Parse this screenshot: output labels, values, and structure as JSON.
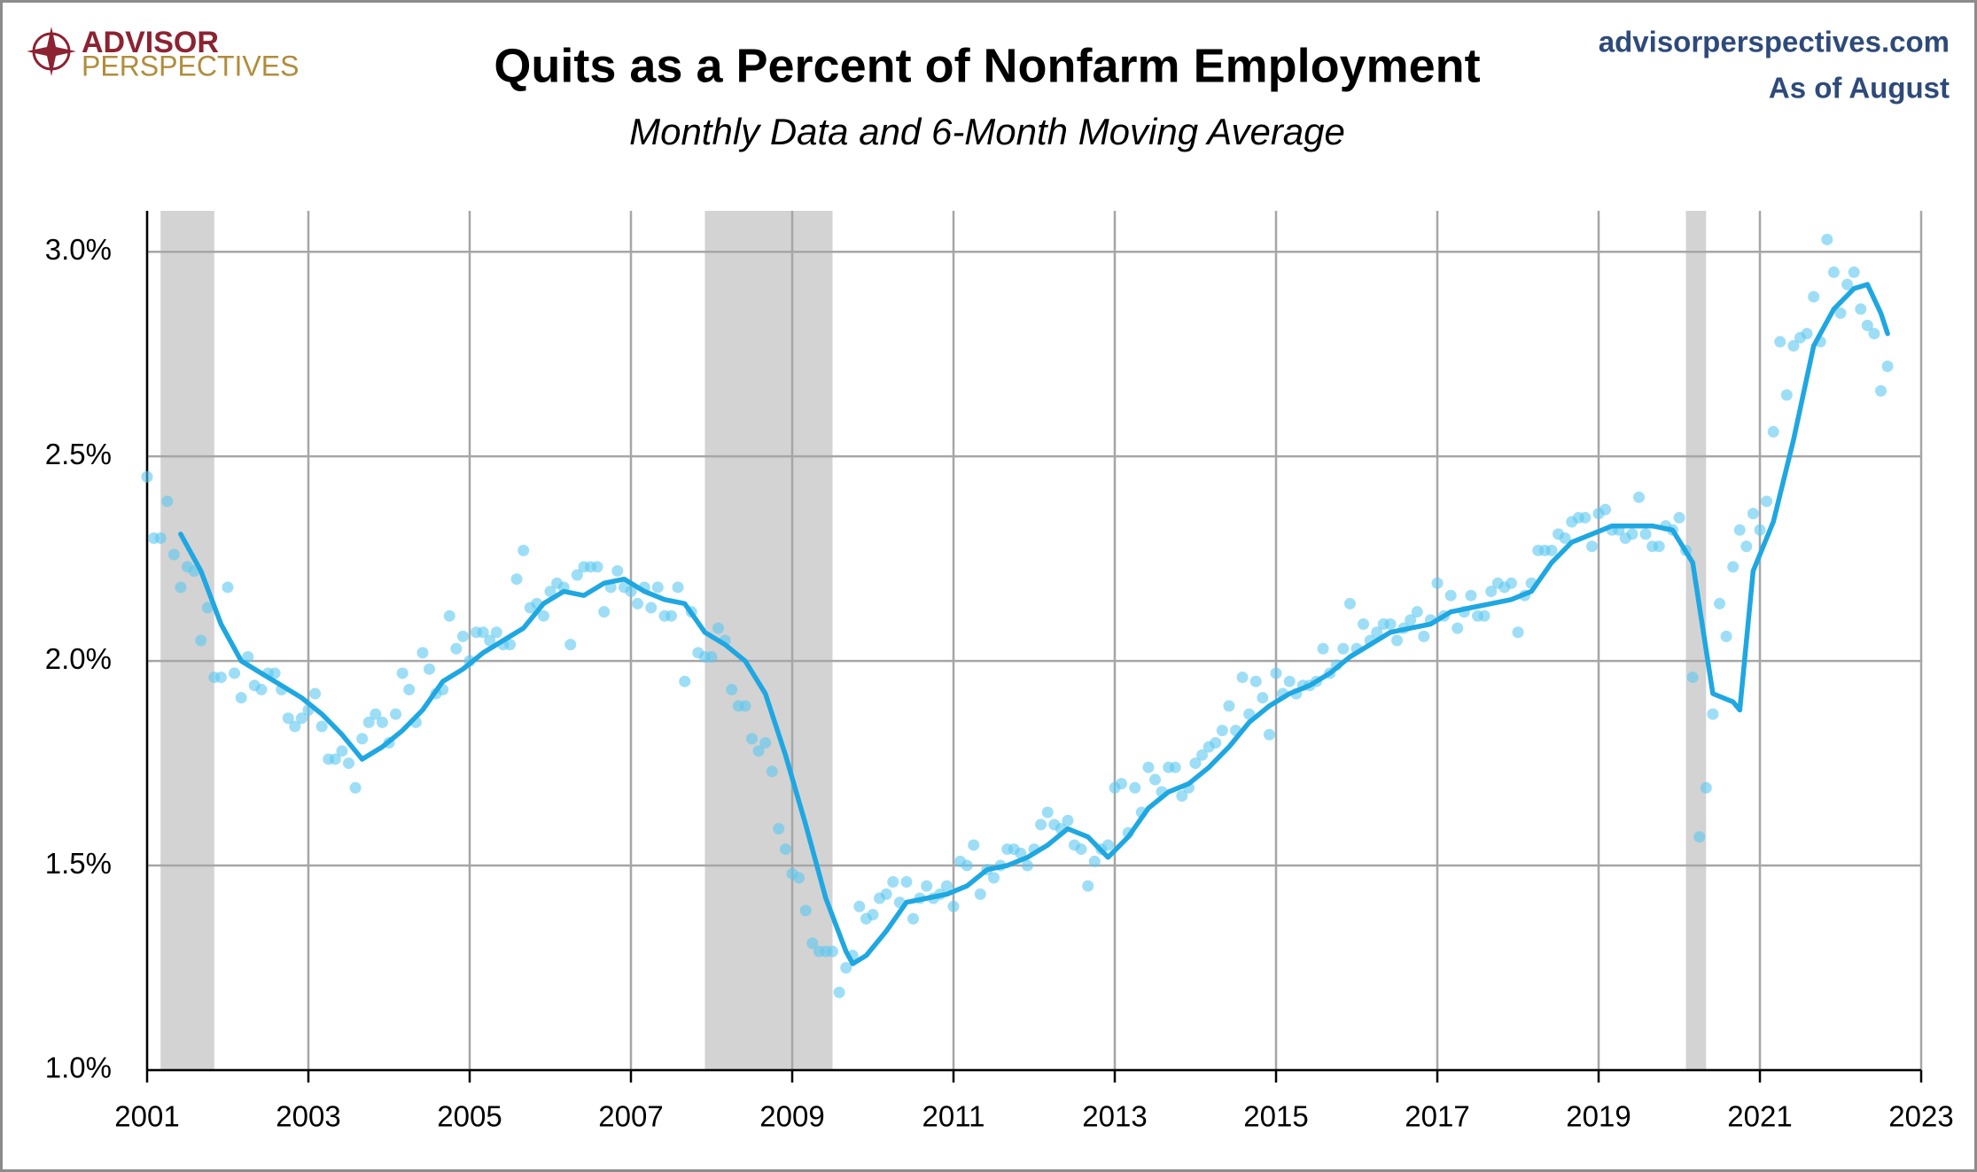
{
  "chart_data": {
    "type": "combo",
    "logo": {
      "line1": "ADVISOR",
      "line2": "PERSPECTIVES"
    },
    "source": "advisorperspectives.com",
    "as_of": "As of August",
    "title": "Quits as a Percent of Nonfarm Employment",
    "subtitle": "Monthly Data and 6-Month Moving Average",
    "xlim": [
      2001,
      2023
    ],
    "xticks": [
      2001,
      2003,
      2005,
      2007,
      2009,
      2011,
      2013,
      2015,
      2017,
      2019,
      2021,
      2023
    ],
    "ylim": [
      1.0,
      3.1
    ],
    "yticks": [
      {
        "value": 1.0,
        "label": "1.0%"
      },
      {
        "value": 1.5,
        "label": "1.5%"
      },
      {
        "value": 2.0,
        "label": "2.0%"
      },
      {
        "value": 2.5,
        "label": "2.5%"
      },
      {
        "value": 3.0,
        "label": "3.0%"
      }
    ],
    "grid": true,
    "shaded_periods": [
      [
        2001.167,
        2001.833
      ],
      [
        2007.917,
        2009.5
      ],
      [
        2020.083,
        2020.333
      ]
    ],
    "shade_color": "#D3D3D3",
    "series": [
      {
        "type": "scatter",
        "color": "#5BC8F0",
        "x": [
          2001,
          2001.083,
          2001.167,
          2001.25,
          2001.333,
          2001.417,
          2001.5,
          2001.583,
          2001.667,
          2001.75,
          2001.833,
          2001.917,
          2002,
          2002.083,
          2002.167,
          2002.25,
          2002.333,
          2002.417,
          2002.5,
          2002.583,
          2002.667,
          2002.75,
          2002.833,
          2002.917,
          2003,
          2003.083,
          2003.167,
          2003.25,
          2003.333,
          2003.417,
          2003.5,
          2003.583,
          2003.667,
          2003.75,
          2003.833,
          2003.917,
          2004,
          2004.083,
          2004.167,
          2004.25,
          2004.333,
          2004.417,
          2004.5,
          2004.583,
          2004.667,
          2004.75,
          2004.833,
          2004.917,
          2005,
          2005.083,
          2005.167,
          2005.25,
          2005.333,
          2005.417,
          2005.5,
          2005.583,
          2005.667,
          2005.75,
          2005.833,
          2005.917,
          2006,
          2006.083,
          2006.167,
          2006.25,
          2006.333,
          2006.417,
          2006.5,
          2006.583,
          2006.667,
          2006.75,
          2006.833,
          2006.917,
          2007,
          2007.083,
          2007.167,
          2007.25,
          2007.333,
          2007.417,
          2007.5,
          2007.583,
          2007.667,
          2007.75,
          2007.833,
          2007.917,
          2008,
          2008.083,
          2008.167,
          2008.25,
          2008.333,
          2008.417,
          2008.5,
          2008.583,
          2008.667,
          2008.75,
          2008.833,
          2008.917,
          2009,
          2009.083,
          2009.167,
          2009.25,
          2009.333,
          2009.417,
          2009.5,
          2009.583,
          2009.667,
          2009.75,
          2009.833,
          2009.917,
          2010,
          2010.083,
          2010.167,
          2010.25,
          2010.333,
          2010.417,
          2010.5,
          2010.583,
          2010.667,
          2010.75,
          2010.833,
          2010.917,
          2011,
          2011.083,
          2011.167,
          2011.25,
          2011.333,
          2011.417,
          2011.5,
          2011.583,
          2011.667,
          2011.75,
          2011.833,
          2011.917,
          2012,
          2012.083,
          2012.167,
          2012.25,
          2012.333,
          2012.417,
          2012.5,
          2012.583,
          2012.667,
          2012.75,
          2012.833,
          2012.917,
          2013,
          2013.083,
          2013.167,
          2013.25,
          2013.333,
          2013.417,
          2013.5,
          2013.583,
          2013.667,
          2013.75,
          2013.833,
          2013.917,
          2014,
          2014.083,
          2014.167,
          2014.25,
          2014.333,
          2014.417,
          2014.5,
          2014.583,
          2014.667,
          2014.75,
          2014.833,
          2014.917,
          2015,
          2015.083,
          2015.167,
          2015.25,
          2015.333,
          2015.417,
          2015.5,
          2015.583,
          2015.667,
          2015.75,
          2015.833,
          2015.917,
          2016,
          2016.083,
          2016.167,
          2016.25,
          2016.333,
          2016.417,
          2016.5,
          2016.583,
          2016.667,
          2016.75,
          2016.833,
          2016.917,
          2017,
          2017.083,
          2017.167,
          2017.25,
          2017.333,
          2017.417,
          2017.5,
          2017.583,
          2017.667,
          2017.75,
          2017.833,
          2017.917,
          2018,
          2018.083,
          2018.167,
          2018.25,
          2018.333,
          2018.417,
          2018.5,
          2018.583,
          2018.667,
          2018.75,
          2018.833,
          2018.917,
          2019,
          2019.083,
          2019.167,
          2019.25,
          2019.333,
          2019.417,
          2019.5,
          2019.583,
          2019.667,
          2019.75,
          2019.833,
          2019.917,
          2020,
          2020.083,
          2020.167,
          2020.25,
          2020.333,
          2020.417,
          2020.5,
          2020.583,
          2020.667,
          2020.75,
          2020.833,
          2020.917,
          2021,
          2021.083,
          2021.167,
          2021.25,
          2021.333,
          2021.417,
          2021.5,
          2021.583,
          2021.667,
          2021.75,
          2021.833,
          2021.917,
          2022,
          2022.083,
          2022.167,
          2022.25,
          2022.333,
          2022.417,
          2022.5,
          2022.583
        ],
        "values": [
          2.45,
          2.3,
          2.3,
          2.39,
          2.26,
          2.18,
          2.23,
          2.22,
          2.05,
          2.13,
          1.96,
          1.96,
          2.18,
          1.97,
          1.91,
          2.01,
          1.94,
          1.93,
          1.97,
          1.97,
          1.93,
          1.86,
          1.84,
          1.86,
          1.88,
          1.92,
          1.84,
          1.76,
          1.76,
          1.78,
          1.75,
          1.69,
          1.81,
          1.85,
          1.87,
          1.85,
          1.8,
          1.87,
          1.97,
          1.93,
          1.85,
          2.02,
          1.98,
          1.92,
          1.93,
          2.11,
          2.03,
          2.06,
          2.0,
          2.07,
          2.07,
          2.05,
          2.07,
          2.04,
          2.04,
          2.2,
          2.27,
          2.13,
          2.14,
          2.11,
          2.17,
          2.19,
          2.18,
          2.04,
          2.21,
          2.23,
          2.23,
          2.23,
          2.12,
          2.18,
          2.22,
          2.18,
          2.17,
          2.14,
          2.18,
          2.13,
          2.18,
          2.11,
          2.11,
          2.18,
          1.95,
          2.12,
          2.02,
          2.01,
          2.01,
          2.08,
          2.05,
          1.93,
          1.89,
          1.89,
          1.81,
          1.78,
          1.8,
          1.73,
          1.59,
          1.54,
          1.48,
          1.47,
          1.39,
          1.31,
          1.29,
          1.29,
          1.29,
          1.19,
          1.25,
          1.28,
          1.4,
          1.37,
          1.38,
          1.42,
          1.43,
          1.46,
          1.41,
          1.46,
          1.37,
          1.42,
          1.45,
          1.42,
          1.43,
          1.45,
          1.4,
          1.51,
          1.5,
          1.55,
          1.43,
          1.49,
          1.47,
          1.5,
          1.54,
          1.54,
          1.53,
          1.5,
          1.54,
          1.6,
          1.63,
          1.6,
          1.59,
          1.61,
          1.55,
          1.54,
          1.45,
          1.51,
          1.54,
          1.55,
          1.69,
          1.7,
          1.58,
          1.69,
          1.63,
          1.74,
          1.71,
          1.68,
          1.74,
          1.74,
          1.67,
          1.69,
          1.75,
          1.77,
          1.79,
          1.8,
          1.83,
          1.89,
          1.83,
          1.96,
          1.87,
          1.95,
          1.91,
          1.82,
          1.97,
          1.92,
          1.95,
          1.92,
          1.94,
          1.94,
          1.95,
          2.03,
          1.97,
          1.99,
          2.03,
          2.14,
          2.03,
          2.09,
          2.05,
          2.07,
          2.09,
          2.09,
          2.05,
          2.08,
          2.1,
          2.12,
          2.06,
          2.1,
          2.19,
          2.11,
          2.16,
          2.08,
          2.12,
          2.16,
          2.11,
          2.11,
          2.17,
          2.19,
          2.18,
          2.19,
          2.07,
          2.16,
          2.19,
          2.27,
          2.27,
          2.27,
          2.31,
          2.3,
          2.34,
          2.35,
          2.35,
          2.28,
          2.36,
          2.37,
          2.32,
          2.32,
          2.3,
          2.31,
          2.4,
          2.31,
          2.28,
          2.28,
          2.33,
          2.32,
          2.35,
          2.27,
          1.96,
          1.57,
          1.69,
          1.87,
          2.14,
          2.06,
          2.23,
          2.32,
          2.28,
          2.36,
          2.32,
          2.39,
          2.56,
          2.78,
          2.65,
          2.77,
          2.79,
          2.8,
          2.89,
          2.78,
          3.03,
          2.95,
          2.85,
          2.92,
          2.95,
          2.86,
          2.82,
          2.8,
          2.66,
          2.72
        ]
      },
      {
        "type": "line",
        "color": "#1FA7E1",
        "x": [
          2001.417,
          2001.667,
          2001.917,
          2002.167,
          2002.417,
          2002.667,
          2002.917,
          2003.167,
          2003.417,
          2003.667,
          2003.917,
          2004.167,
          2004.417,
          2004.667,
          2004.917,
          2005.167,
          2005.417,
          2005.667,
          2005.917,
          2006.167,
          2006.417,
          2006.667,
          2006.917,
          2007.167,
          2007.417,
          2007.667,
          2007.917,
          2008.167,
          2008.417,
          2008.667,
          2008.917,
          2009.167,
          2009.417,
          2009.667,
          2009.75,
          2009.917,
          2010.167,
          2010.417,
          2010.667,
          2010.917,
          2011.167,
          2011.417,
          2011.667,
          2011.917,
          2012.167,
          2012.417,
          2012.667,
          2012.917,
          2013.167,
          2013.417,
          2013.667,
          2013.917,
          2014.167,
          2014.417,
          2014.667,
          2014.917,
          2015.167,
          2015.417,
          2015.667,
          2015.917,
          2016.167,
          2016.417,
          2016.667,
          2016.917,
          2017.167,
          2017.417,
          2017.667,
          2017.917,
          2018.167,
          2018.417,
          2018.667,
          2018.917,
          2019.167,
          2019.417,
          2019.667,
          2019.917,
          2020.167,
          2020.417,
          2020.667,
          2020.75,
          2020.917,
          2021.167,
          2021.417,
          2021.667,
          2021.917,
          2022.167,
          2022.333,
          2022.5,
          2022.583
        ],
        "values": [
          2.31,
          2.22,
          2.09,
          2.0,
          1.97,
          1.94,
          1.91,
          1.87,
          1.82,
          1.76,
          1.79,
          1.83,
          1.88,
          1.95,
          1.98,
          2.02,
          2.05,
          2.08,
          2.14,
          2.17,
          2.16,
          2.19,
          2.2,
          2.17,
          2.15,
          2.14,
          2.07,
          2.04,
          2.0,
          1.92,
          1.77,
          1.6,
          1.42,
          1.29,
          1.26,
          1.28,
          1.34,
          1.41,
          1.42,
          1.43,
          1.45,
          1.49,
          1.5,
          1.52,
          1.55,
          1.59,
          1.57,
          1.52,
          1.57,
          1.64,
          1.68,
          1.7,
          1.74,
          1.79,
          1.85,
          1.89,
          1.92,
          1.94,
          1.97,
          2.01,
          2.04,
          2.07,
          2.08,
          2.09,
          2.12,
          2.13,
          2.14,
          2.15,
          2.17,
          2.24,
          2.29,
          2.31,
          2.33,
          2.33,
          2.33,
          2.32,
          2.24,
          1.92,
          1.9,
          1.88,
          2.22,
          2.34,
          2.54,
          2.77,
          2.86,
          2.91,
          2.92,
          2.85,
          2.8
        ]
      }
    ]
  }
}
